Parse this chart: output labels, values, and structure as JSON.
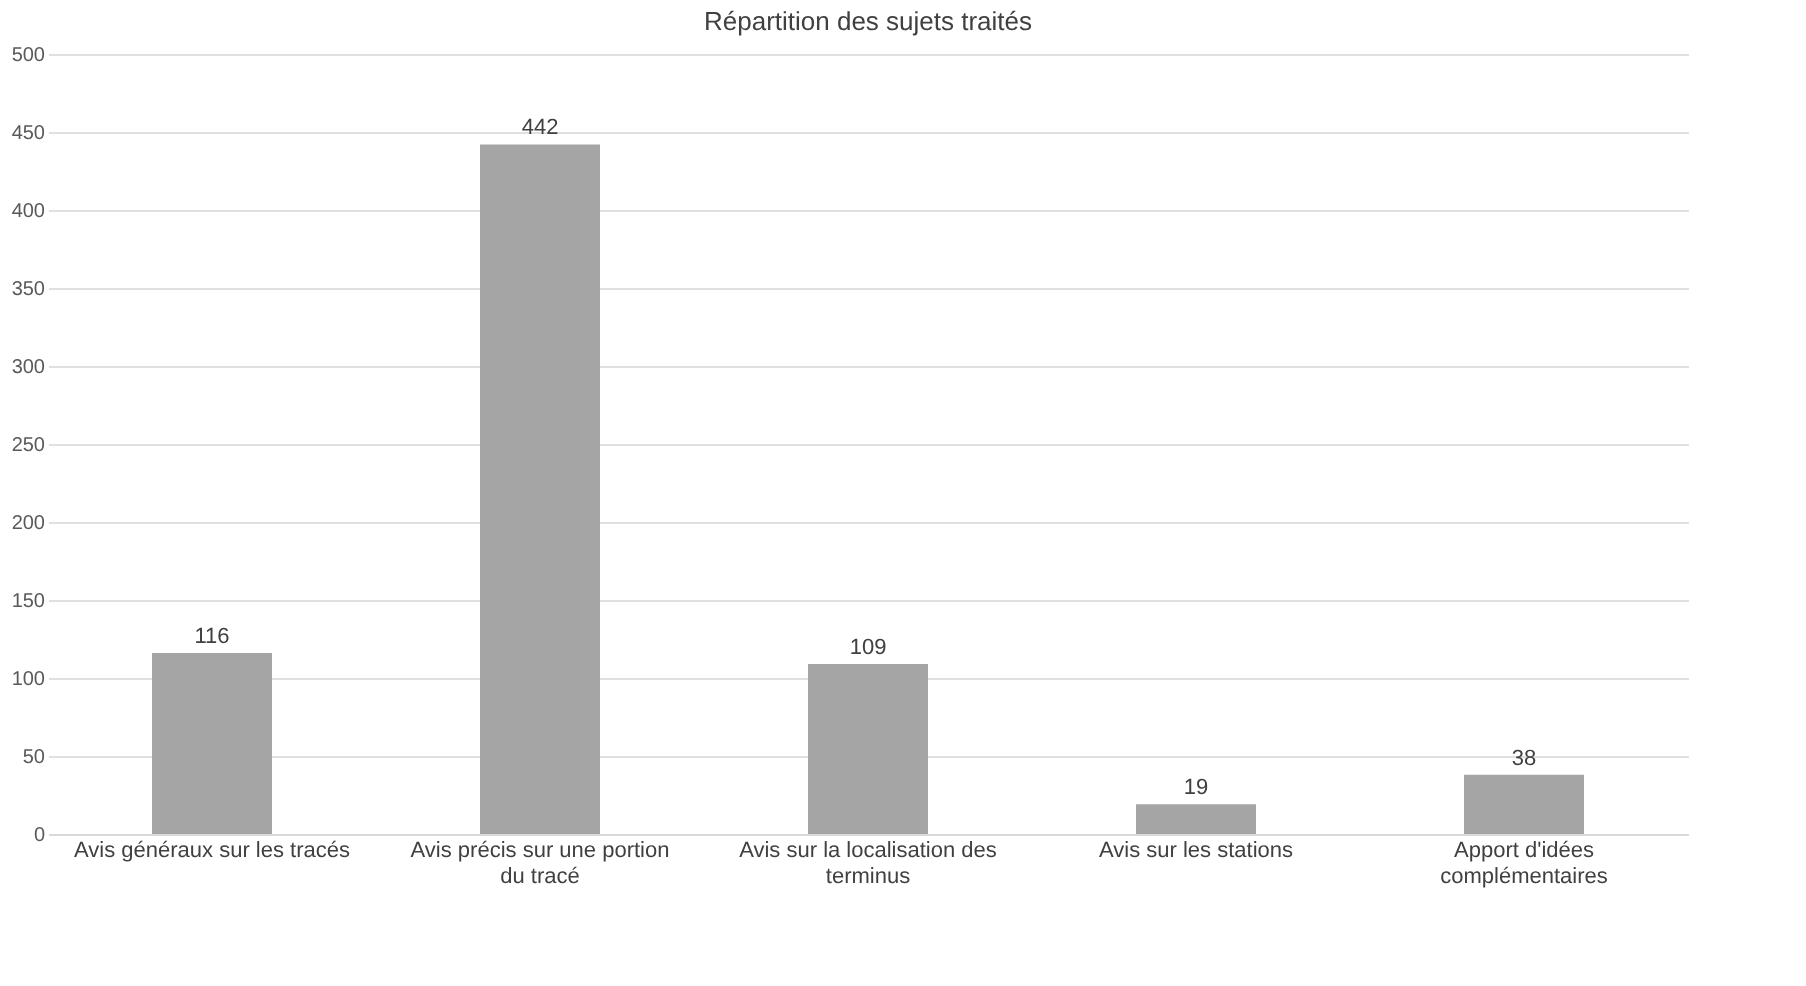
{
  "chart_data": {
    "type": "bar",
    "title": "Répartition des sujets traités",
    "categories": [
      "Avis généraux sur les tracés",
      "Avis précis sur une portion du tracé",
      "Avis sur la localisation des terminus",
      "Avis sur les stations",
      "Apport d'idées complémentaires"
    ],
    "values": [
      116,
      442,
      109,
      19,
      38
    ],
    "color": "#a5a5a5",
    "ylim": [
      0,
      500
    ],
    "yticks": [
      0,
      50,
      100,
      150,
      200,
      250,
      300,
      350,
      400,
      450,
      500
    ],
    "grid": "y",
    "data_labels": true
  }
}
